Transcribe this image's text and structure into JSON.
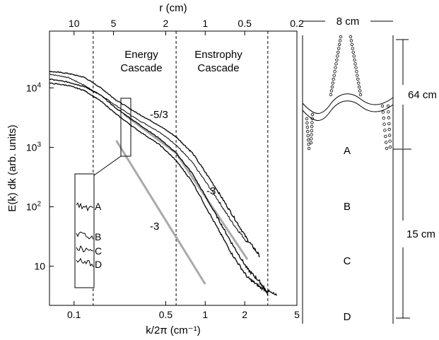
{
  "chart_data": {
    "type": "line",
    "xlabel": "k/2π (cm⁻¹)",
    "ylabel": "E(k) dk (arb. units)",
    "top_axis_label": "r (cm)",
    "x_scale": "log",
    "y_scale": "log",
    "xlim": [
      0.065,
      5
    ],
    "ylim": [
      2.2,
      90000
    ],
    "x_ticks": [
      {
        "value": 0.1,
        "label": "0.1"
      },
      {
        "value": 0.5,
        "label": "0.5"
      },
      {
        "value": 1,
        "label": "1"
      },
      {
        "value": 2,
        "label": "2"
      },
      {
        "value": 5,
        "label": "5"
      }
    ],
    "y_ticks": [
      {
        "value": 10,
        "label": "10",
        "sup": ""
      },
      {
        "value": 100,
        "label": "10",
        "sup": "2"
      },
      {
        "value": 1000,
        "label": "10",
        "sup": "3"
      },
      {
        "value": 10000,
        "label": "10",
        "sup": "4"
      }
    ],
    "top_ticks": [
      {
        "r": 10,
        "label": "10"
      },
      {
        "r": 5,
        "label": "5"
      },
      {
        "r": 2,
        "label": "2"
      },
      {
        "r": 1,
        "label": "1"
      },
      {
        "r": 0.5,
        "label": "0.5"
      },
      {
        "r": 0.2,
        "label": "0.2"
      }
    ],
    "vlines_k": [
      0.14,
      0.6,
      3.0
    ],
    "region_labels": [
      {
        "text": "Energy",
        "text2": "Cascade"
      },
      {
        "text": "Enstrophy",
        "text2": "Cascade"
      }
    ],
    "series": [
      {
        "name": "A",
        "x": [
          0.065,
          0.09,
          0.12,
          0.16,
          0.21,
          0.3,
          0.45,
          0.6,
          0.8,
          1.2,
          1.6,
          2.1
        ],
        "y": [
          17000,
          15000,
          11000,
          7500,
          5000,
          3000,
          1800,
          1100,
          550,
          150,
          55,
          25
        ]
      },
      {
        "name": "B",
        "x": [
          0.065,
          0.09,
          0.12,
          0.16,
          0.21,
          0.3,
          0.45,
          0.6,
          0.8,
          1.2,
          1.6,
          2.1,
          2.6
        ],
        "y": [
          19000,
          17500,
          15000,
          10000,
          6200,
          3800,
          2300,
          1500,
          800,
          210,
          75,
          28,
          15
        ]
      },
      {
        "name": "C",
        "x": [
          0.065,
          0.09,
          0.12,
          0.16,
          0.21,
          0.3,
          0.45,
          0.6,
          0.8,
          1.2,
          1.6,
          2.1,
          2.6,
          3.0
        ],
        "y": [
          14000,
          12500,
          10500,
          7500,
          4500,
          2600,
          1400,
          800,
          360,
          75,
          24,
          9,
          5.5,
          3.5
        ]
      },
      {
        "name": "D",
        "x": [
          0.065,
          0.09,
          0.12,
          0.16,
          0.21,
          0.3,
          0.45,
          0.6,
          0.8,
          1.2,
          1.6,
          2.1,
          2.6,
          3.5
        ],
        "y": [
          12000,
          11000,
          9000,
          6000,
          3600,
          2000,
          1100,
          600,
          260,
          50,
          16,
          6.5,
          4.5,
          3.2
        ]
      }
    ],
    "reference_lines": [
      {
        "label": "-5/3",
        "x": [
          0.24,
          0.6
        ],
        "y": [
          3600,
          800
        ]
      },
      {
        "label": "-3",
        "x": [
          0.6,
          2.1
        ],
        "y": [
          800,
          13
        ]
      },
      {
        "label": "-3",
        "x": [
          0.21,
          1.0
        ],
        "y": [
          1300,
          5
        ]
      }
    ],
    "inset_labels": [
      "A",
      "B",
      "C",
      "D"
    ]
  },
  "diagram": {
    "width_label": "8 cm",
    "height_label": "64 cm",
    "lower_label": "15 cm",
    "levels": [
      "A",
      "B",
      "C",
      "D"
    ]
  }
}
